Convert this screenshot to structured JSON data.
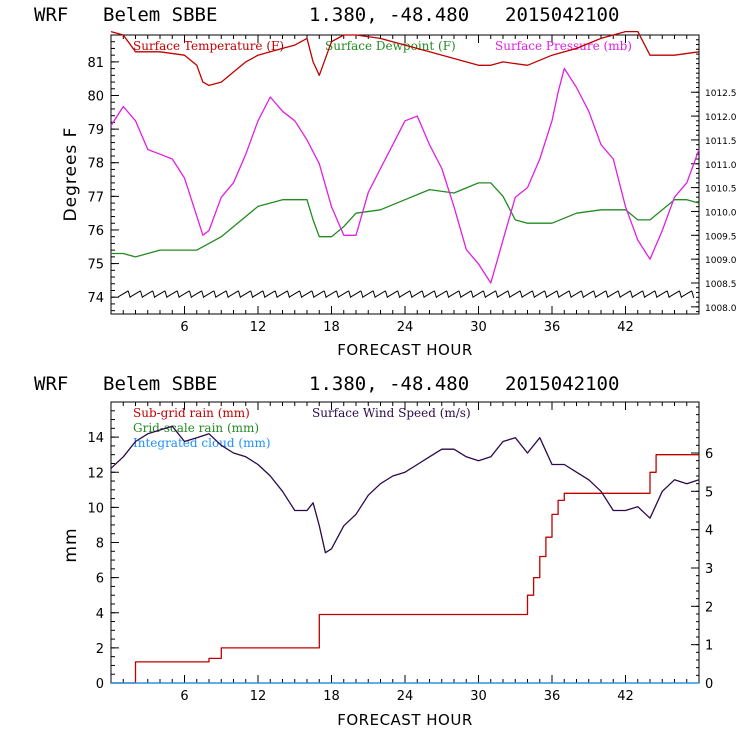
{
  "chart_data": [
    {
      "type": "line",
      "title": {
        "model": "WRF",
        "station": "Belem SBBE",
        "coords": "1.380, -48.480",
        "init": "2015042100"
      },
      "xlabel": "FORECAST HOUR",
      "ylabel": "Degrees F",
      "xlim": [
        0,
        48
      ],
      "ylim_left": [
        73.5,
        81.8
      ],
      "ylim_right": [
        1007.85,
        1013.7
      ],
      "x_ticks": [
        "6",
        "12",
        "18",
        "24",
        "30",
        "36",
        "42"
      ],
      "y_ticks_left": [
        "74",
        "75",
        "76",
        "77",
        "78",
        "79",
        "80",
        "81"
      ],
      "y_ticks_right": [
        "1008.0",
        "1008.5",
        "1009.0",
        "1009.5",
        "1010.0",
        "1010.5",
        "1011.0",
        "1011.5",
        "1012.0",
        "1012.5"
      ],
      "series": [
        {
          "name": "Surface Temperature (F)",
          "axis": "left",
          "color": "#c00000",
          "x": [
            0,
            1,
            2,
            4,
            6,
            7,
            7.5,
            8,
            9,
            10,
            11,
            12,
            13,
            14,
            15,
            16,
            16.5,
            17,
            18,
            19,
            20,
            22,
            24,
            26,
            28,
            30,
            31,
            32,
            34,
            36,
            38,
            40,
            42,
            43,
            44,
            46,
            48
          ],
          "values": [
            81.9,
            81.8,
            81.3,
            81.3,
            81.2,
            80.9,
            80.4,
            80.3,
            80.4,
            80.7,
            81.0,
            81.2,
            81.3,
            81.4,
            81.5,
            81.7,
            81.0,
            80.6,
            81.6,
            81.8,
            81.8,
            81.7,
            81.5,
            81.3,
            81.1,
            80.9,
            80.9,
            81.0,
            80.9,
            81.2,
            81.4,
            81.7,
            81.9,
            81.9,
            81.2,
            81.2,
            81.3
          ]
        },
        {
          "name": "Surface Dewpoint (F)",
          "axis": "left",
          "color": "#228b22",
          "x": [
            0,
            1,
            2,
            3,
            4,
            6,
            7,
            8,
            9,
            10,
            12,
            14,
            15,
            16,
            16.5,
            17,
            18,
            19,
            20,
            22,
            24,
            26,
            28,
            30,
            31,
            32,
            33,
            34,
            36,
            38,
            40,
            42,
            43,
            44,
            46,
            47,
            48
          ],
          "values": [
            75.3,
            75.3,
            75.2,
            75.3,
            75.4,
            75.4,
            75.4,
            75.6,
            75.8,
            76.1,
            76.7,
            76.9,
            76.9,
            76.9,
            76.3,
            75.8,
            75.8,
            76.1,
            76.5,
            76.6,
            76.9,
            77.2,
            77.1,
            77.4,
            77.4,
            77.0,
            76.3,
            76.2,
            76.2,
            76.5,
            76.6,
            76.6,
            76.3,
            76.3,
            76.9,
            76.9,
            76.8
          ]
        },
        {
          "name": "Surface Pressure (mb)",
          "axis": "right",
          "color": "#e020e0",
          "x": [
            0,
            1,
            2,
            3,
            4,
            5,
            6,
            7,
            7.5,
            8,
            9,
            10,
            11,
            12,
            13,
            14,
            15,
            16,
            17,
            18,
            19,
            20,
            21,
            22,
            23,
            24,
            25,
            26,
            27,
            28,
            29,
            30,
            31,
            32,
            33,
            34,
            35,
            36,
            36.5,
            37,
            38,
            39,
            40,
            41,
            42,
            43,
            44,
            45,
            46,
            47,
            48
          ],
          "values": [
            1011.8,
            1012.2,
            1011.9,
            1011.3,
            1011.2,
            1011.1,
            1010.7,
            1009.9,
            1009.5,
            1009.6,
            1010.3,
            1010.6,
            1011.2,
            1011.9,
            1012.4,
            1012.1,
            1011.9,
            1011.5,
            1011.0,
            1010.1,
            1009.5,
            1009.5,
            1010.4,
            1010.9,
            1011.4,
            1011.9,
            1012.0,
            1011.4,
            1010.9,
            1010.1,
            1009.2,
            1008.9,
            1008.5,
            1009.4,
            1010.3,
            1010.5,
            1011.1,
            1011.9,
            1012.5,
            1013.0,
            1012.6,
            1012.1,
            1011.4,
            1011.1,
            1010.1,
            1009.4,
            1009.0,
            1009.6,
            1010.3,
            1010.6,
            1011.3
          ]
        }
      ],
      "wind_barbs": {
        "x_start": 1,
        "x_end": 47.5,
        "spacing": 1,
        "level": 74.1
      },
      "legend": [
        "Surface Temperature (F)",
        "Surface Dewpoint (F)",
        "Surface Pressure (mb)"
      ]
    },
    {
      "type": "line",
      "title": {
        "model": "WRF",
        "station": "Belem SBBE",
        "coords": "1.380, -48.480",
        "init": "2015042100"
      },
      "xlabel": "FORECAST HOUR",
      "ylabel": "mm",
      "xlim": [
        0,
        48
      ],
      "ylim_left": [
        0,
        16
      ],
      "ylim_right": [
        0,
        7.33
      ],
      "x_ticks": [
        "6",
        "12",
        "18",
        "24",
        "30",
        "36",
        "42"
      ],
      "y_ticks_left": [
        "0",
        "2",
        "4",
        "6",
        "8",
        "10",
        "12",
        "14"
      ],
      "y_ticks_right": [
        "0",
        "1",
        "2",
        "3",
        "4",
        "5",
        "6"
      ],
      "series": [
        {
          "name": "Sub-grid rain (mm)",
          "axis": "left",
          "color": "#c00000",
          "step": true,
          "x": [
            0,
            1.5,
            2,
            7.5,
            8,
            9,
            16,
            17,
            33.5,
            34,
            34.5,
            35,
            35.5,
            36,
            36.5,
            37,
            43,
            44,
            44.5,
            48
          ],
          "values": [
            0,
            0,
            1.2,
            1.2,
            1.4,
            2.0,
            2.0,
            3.9,
            3.9,
            5.0,
            6.0,
            7.2,
            8.3,
            9.6,
            10.4,
            10.8,
            10.8,
            12.0,
            13.0,
            13.0
          ]
        },
        {
          "name": "Grid-scale rain (mm)",
          "axis": "left",
          "color": "#228b22",
          "x": [
            0,
            48
          ],
          "values": [
            0,
            0
          ]
        },
        {
          "name": "Integrated cloud (mm)",
          "axis": "left",
          "color": "#1e90ff",
          "x": [
            0,
            48
          ],
          "values": [
            0,
            0
          ]
        },
        {
          "name": "Surface Wind Speed (m/s)",
          "axis": "right",
          "color": "#2a0a4a",
          "x": [
            0,
            1,
            2,
            3,
            4,
            5,
            6,
            7,
            8,
            9,
            10,
            11,
            12,
            13,
            14,
            15,
            16,
            16.5,
            17,
            17.5,
            18,
            19,
            20,
            21,
            22,
            23,
            24,
            25,
            26,
            27,
            28,
            29,
            30,
            31,
            32,
            33,
            34,
            35,
            36,
            37,
            38,
            39,
            40,
            41,
            42,
            43,
            44,
            45,
            46,
            47,
            48
          ],
          "values": [
            5.6,
            5.9,
            6.3,
            6.5,
            6.6,
            6.7,
            6.3,
            6.4,
            6.5,
            6.2,
            6.0,
            5.9,
            5.7,
            5.4,
            5.0,
            4.5,
            4.5,
            4.7,
            4.1,
            3.4,
            3.5,
            4.1,
            4.4,
            4.9,
            5.2,
            5.4,
            5.5,
            5.7,
            5.9,
            6.1,
            6.1,
            5.9,
            5.8,
            5.9,
            6.3,
            6.4,
            6.0,
            6.4,
            5.7,
            5.7,
            5.5,
            5.3,
            5.0,
            4.5,
            4.5,
            4.6,
            4.3,
            5.0,
            5.3,
            5.2,
            5.3
          ]
        }
      ],
      "legend": [
        "Sub-grid rain (mm)",
        "Surface Wind Speed (m/s)",
        "Grid-scale rain (mm)",
        "Integrated cloud (mm)"
      ]
    }
  ]
}
